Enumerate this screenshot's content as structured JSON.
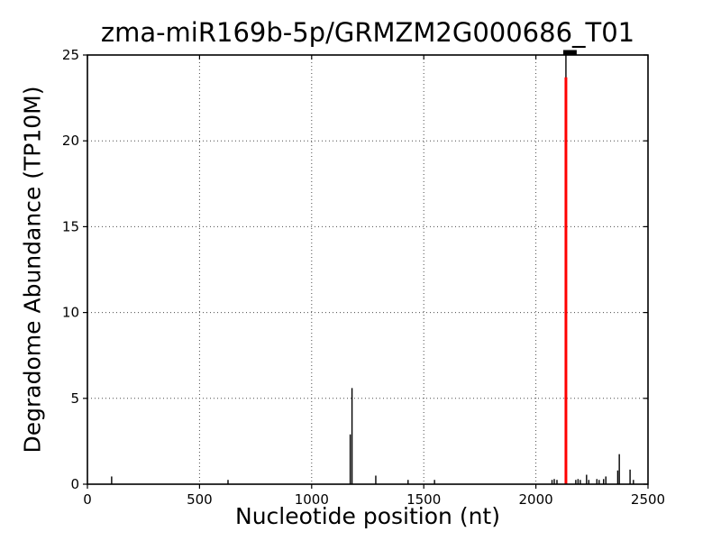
{
  "chart_data": {
    "type": "stem",
    "title": "zma-miR169b-5p/GRMZM2G000686_T01",
    "xlabel": "Nucleotide position (nt)",
    "ylabel": "Degradome Abundance (TP10M)",
    "xlim": [
      0,
      2500
    ],
    "ylim": [
      0,
      25
    ],
    "x_ticks": [
      0,
      500,
      1000,
      1500,
      2000,
      2500
    ],
    "y_ticks": [
      0,
      5,
      10,
      15,
      20,
      25
    ],
    "grid": true,
    "grid_style": "dotted",
    "legend": "none",
    "colors": {
      "spike": "#000000",
      "target_line": "#ff0000",
      "frame": "#000000",
      "background": "#ffffff"
    },
    "spikes": [
      [
        108,
        0.45
      ],
      [
        627,
        0.25
      ],
      [
        1172,
        2.9
      ],
      [
        1180,
        5.6
      ],
      [
        1286,
        0.5
      ],
      [
        1430,
        0.25
      ],
      [
        1548,
        0.25
      ],
      [
        2072,
        0.25
      ],
      [
        2082,
        0.3
      ],
      [
        2094,
        0.25
      ],
      [
        2178,
        0.25
      ],
      [
        2188,
        0.3
      ],
      [
        2198,
        0.25
      ],
      [
        2226,
        0.55
      ],
      [
        2236,
        0.25
      ],
      [
        2272,
        0.3
      ],
      [
        2282,
        0.25
      ],
      [
        2302,
        0.3
      ],
      [
        2312,
        0.45
      ],
      [
        2365,
        0.8
      ],
      [
        2372,
        1.75
      ],
      [
        2420,
        0.85
      ],
      [
        2435,
        0.25
      ]
    ],
    "target_site": {
      "position": 2134,
      "value": 25,
      "red_line_top": 23.7,
      "region": [
        2122,
        2182
      ]
    }
  }
}
